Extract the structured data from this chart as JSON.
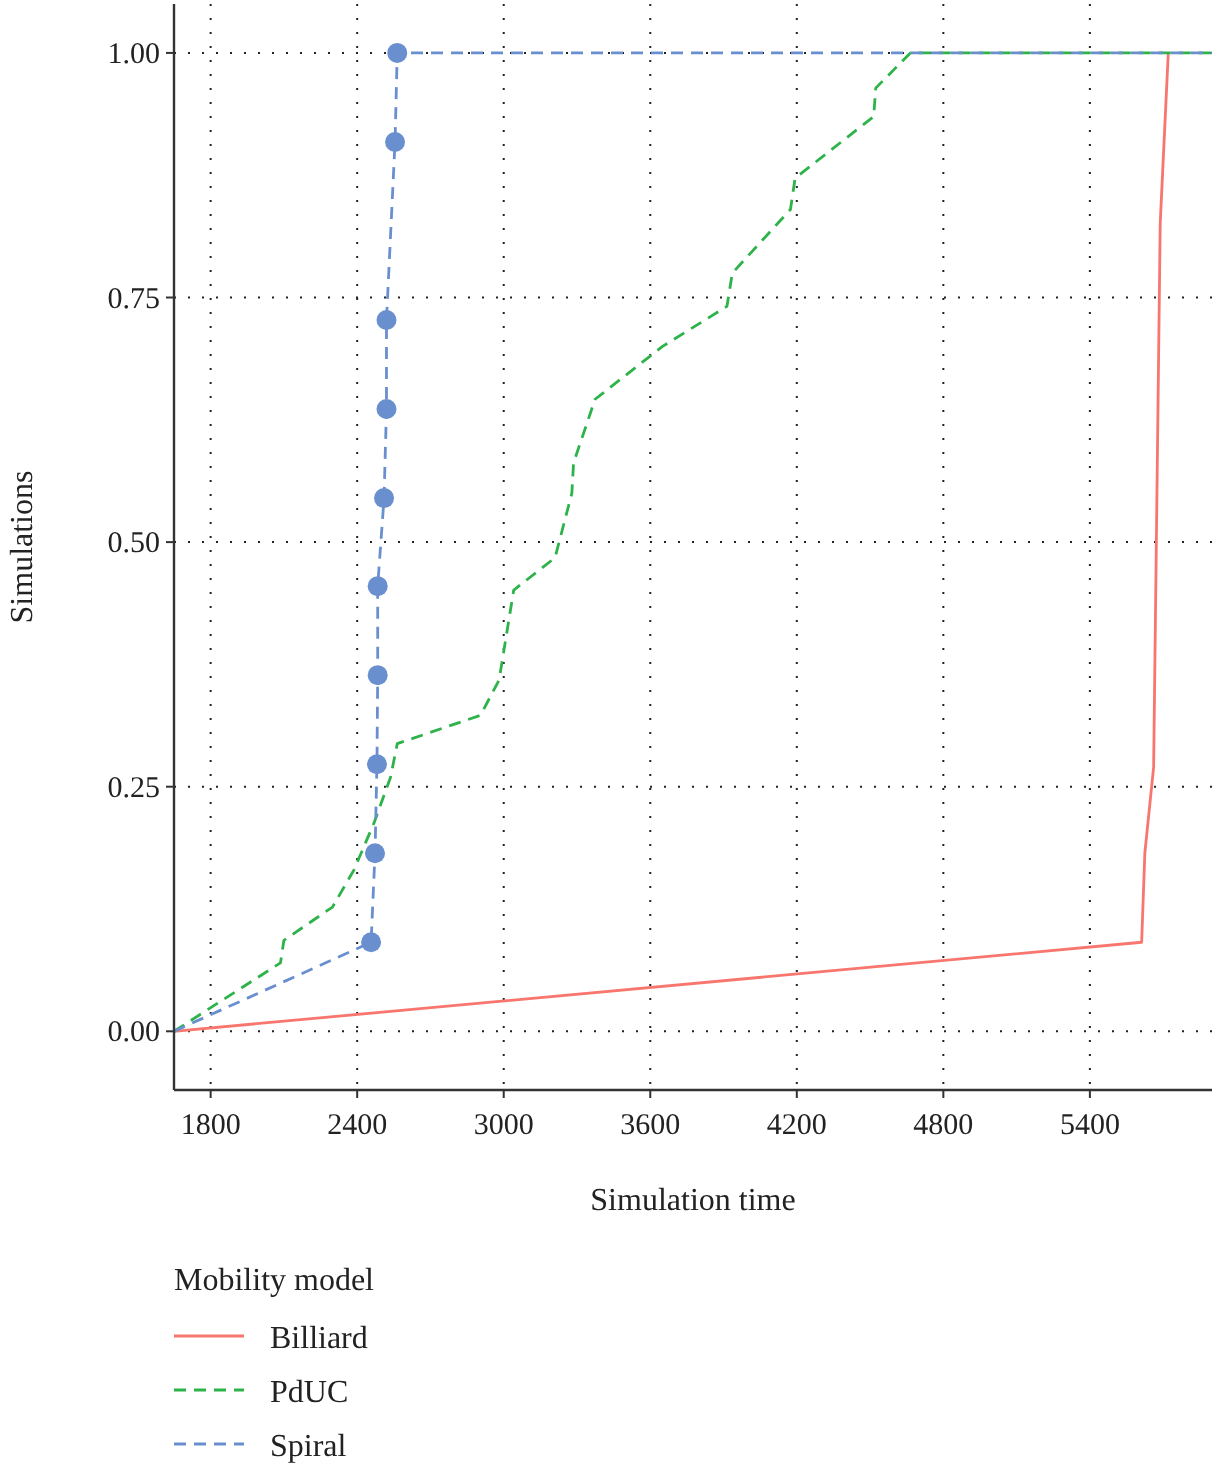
{
  "chart_data": {
    "type": "line",
    "xlabel": "Simulation time",
    "ylabel": "Simulations",
    "legend_title": "Mobility model",
    "xlim": [
      1650,
      5900
    ],
    "ylim": [
      -0.06,
      1.05
    ],
    "xticks": [
      1800,
      2400,
      3000,
      3600,
      4200,
      4800,
      5400
    ],
    "yticks": [
      {
        "value": 0,
        "label": "0.00"
      },
      {
        "value": 0.25,
        "label": "0.25"
      },
      {
        "value": 0.5,
        "label": "0.50"
      },
      {
        "value": 0.75,
        "label": "0.75"
      },
      {
        "value": 1,
        "label": "1.00"
      }
    ],
    "grid": true,
    "legend": "bottom left",
    "series": [
      {
        "name": "Billiard",
        "color": "#f8766d",
        "line_style": "solid",
        "marker": "none",
        "x": [
          1650,
          5612,
          5625,
          5661,
          5688,
          5721
        ],
        "values": [
          0,
          0.091,
          0.182,
          0.27,
          0.826,
          1.0
        ]
      },
      {
        "name": "PdUC",
        "color": "#2eb34a",
        "line_style": "dashed",
        "marker": "none",
        "x": [
          1650,
          2086,
          2100,
          2299,
          2387,
          2469,
          2537,
          2564,
          2905,
          2981,
          3041,
          3210,
          3279,
          3286,
          3374,
          3650,
          3914,
          3936,
          4174,
          4193,
          4515,
          4523,
          4665,
          5900
        ],
        "values": [
          0,
          0.07,
          0.093,
          0.127,
          0.165,
          0.213,
          0.26,
          0.294,
          0.323,
          0.359,
          0.451,
          0.484,
          0.55,
          0.581,
          0.646,
          0.7,
          0.741,
          0.775,
          0.84,
          0.872,
          0.935,
          0.964,
          1.0,
          1.0
        ]
      },
      {
        "name": "Spiral",
        "color": "#6a8fcf",
        "line_style": "dashed",
        "marker": "none",
        "x": [
          1650,
          2457,
          2473,
          2481,
          2484,
          2484,
          2510,
          2520,
          2520,
          2555,
          2564,
          5900
        ],
        "values": [
          0,
          0.091,
          0.182,
          0.273,
          0.364,
          0.455,
          0.545,
          0.636,
          0.727,
          0.909,
          1.0,
          1.0
        ]
      },
      {
        "type": "scatter",
        "color": "#6a8fcf",
        "marker": "circle",
        "x": [
          2457,
          2473,
          2481,
          2484,
          2484,
          2510,
          2520,
          2520,
          2555,
          2564
        ],
        "values": [
          0.091,
          0.182,
          0.273,
          0.364,
          0.455,
          0.545,
          0.636,
          0.727,
          0.909,
          1.0
        ]
      }
    ]
  }
}
